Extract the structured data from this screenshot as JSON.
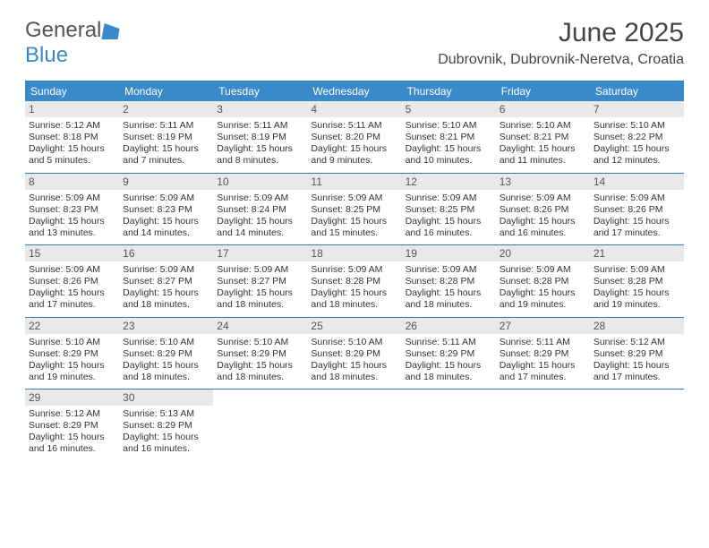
{
  "logo": {
    "text1": "General",
    "text2": "Blue"
  },
  "title": "June 2025",
  "location": "Dubrovnik, Dubrovnik-Neretva, Croatia",
  "header_bg": "#3a8ac9",
  "border_color": "#2b7bb9",
  "daynum_bg": "#e9e9e9",
  "days_of_week": [
    "Sunday",
    "Monday",
    "Tuesday",
    "Wednesday",
    "Thursday",
    "Friday",
    "Saturday"
  ],
  "weeks": [
    [
      {
        "n": "1",
        "sr": "Sunrise: 5:12 AM",
        "ss": "Sunset: 8:18 PM",
        "dl": "Daylight: 15 hours and 5 minutes."
      },
      {
        "n": "2",
        "sr": "Sunrise: 5:11 AM",
        "ss": "Sunset: 8:19 PM",
        "dl": "Daylight: 15 hours and 7 minutes."
      },
      {
        "n": "3",
        "sr": "Sunrise: 5:11 AM",
        "ss": "Sunset: 8:19 PM",
        "dl": "Daylight: 15 hours and 8 minutes."
      },
      {
        "n": "4",
        "sr": "Sunrise: 5:11 AM",
        "ss": "Sunset: 8:20 PM",
        "dl": "Daylight: 15 hours and 9 minutes."
      },
      {
        "n": "5",
        "sr": "Sunrise: 5:10 AM",
        "ss": "Sunset: 8:21 PM",
        "dl": "Daylight: 15 hours and 10 minutes."
      },
      {
        "n": "6",
        "sr": "Sunrise: 5:10 AM",
        "ss": "Sunset: 8:21 PM",
        "dl": "Daylight: 15 hours and 11 minutes."
      },
      {
        "n": "7",
        "sr": "Sunrise: 5:10 AM",
        "ss": "Sunset: 8:22 PM",
        "dl": "Daylight: 15 hours and 12 minutes."
      }
    ],
    [
      {
        "n": "8",
        "sr": "Sunrise: 5:09 AM",
        "ss": "Sunset: 8:23 PM",
        "dl": "Daylight: 15 hours and 13 minutes."
      },
      {
        "n": "9",
        "sr": "Sunrise: 5:09 AM",
        "ss": "Sunset: 8:23 PM",
        "dl": "Daylight: 15 hours and 14 minutes."
      },
      {
        "n": "10",
        "sr": "Sunrise: 5:09 AM",
        "ss": "Sunset: 8:24 PM",
        "dl": "Daylight: 15 hours and 14 minutes."
      },
      {
        "n": "11",
        "sr": "Sunrise: 5:09 AM",
        "ss": "Sunset: 8:25 PM",
        "dl": "Daylight: 15 hours and 15 minutes."
      },
      {
        "n": "12",
        "sr": "Sunrise: 5:09 AM",
        "ss": "Sunset: 8:25 PM",
        "dl": "Daylight: 15 hours and 16 minutes."
      },
      {
        "n": "13",
        "sr": "Sunrise: 5:09 AM",
        "ss": "Sunset: 8:26 PM",
        "dl": "Daylight: 15 hours and 16 minutes."
      },
      {
        "n": "14",
        "sr": "Sunrise: 5:09 AM",
        "ss": "Sunset: 8:26 PM",
        "dl": "Daylight: 15 hours and 17 minutes."
      }
    ],
    [
      {
        "n": "15",
        "sr": "Sunrise: 5:09 AM",
        "ss": "Sunset: 8:26 PM",
        "dl": "Daylight: 15 hours and 17 minutes."
      },
      {
        "n": "16",
        "sr": "Sunrise: 5:09 AM",
        "ss": "Sunset: 8:27 PM",
        "dl": "Daylight: 15 hours and 18 minutes."
      },
      {
        "n": "17",
        "sr": "Sunrise: 5:09 AM",
        "ss": "Sunset: 8:27 PM",
        "dl": "Daylight: 15 hours and 18 minutes."
      },
      {
        "n": "18",
        "sr": "Sunrise: 5:09 AM",
        "ss": "Sunset: 8:28 PM",
        "dl": "Daylight: 15 hours and 18 minutes."
      },
      {
        "n": "19",
        "sr": "Sunrise: 5:09 AM",
        "ss": "Sunset: 8:28 PM",
        "dl": "Daylight: 15 hours and 18 minutes."
      },
      {
        "n": "20",
        "sr": "Sunrise: 5:09 AM",
        "ss": "Sunset: 8:28 PM",
        "dl": "Daylight: 15 hours and 19 minutes."
      },
      {
        "n": "21",
        "sr": "Sunrise: 5:09 AM",
        "ss": "Sunset: 8:28 PM",
        "dl": "Daylight: 15 hours and 19 minutes."
      }
    ],
    [
      {
        "n": "22",
        "sr": "Sunrise: 5:10 AM",
        "ss": "Sunset: 8:29 PM",
        "dl": "Daylight: 15 hours and 19 minutes."
      },
      {
        "n": "23",
        "sr": "Sunrise: 5:10 AM",
        "ss": "Sunset: 8:29 PM",
        "dl": "Daylight: 15 hours and 18 minutes."
      },
      {
        "n": "24",
        "sr": "Sunrise: 5:10 AM",
        "ss": "Sunset: 8:29 PM",
        "dl": "Daylight: 15 hours and 18 minutes."
      },
      {
        "n": "25",
        "sr": "Sunrise: 5:10 AM",
        "ss": "Sunset: 8:29 PM",
        "dl": "Daylight: 15 hours and 18 minutes."
      },
      {
        "n": "26",
        "sr": "Sunrise: 5:11 AM",
        "ss": "Sunset: 8:29 PM",
        "dl": "Daylight: 15 hours and 18 minutes."
      },
      {
        "n": "27",
        "sr": "Sunrise: 5:11 AM",
        "ss": "Sunset: 8:29 PM",
        "dl": "Daylight: 15 hours and 17 minutes."
      },
      {
        "n": "28",
        "sr": "Sunrise: 5:12 AM",
        "ss": "Sunset: 8:29 PM",
        "dl": "Daylight: 15 hours and 17 minutes."
      }
    ],
    [
      {
        "n": "29",
        "sr": "Sunrise: 5:12 AM",
        "ss": "Sunset: 8:29 PM",
        "dl": "Daylight: 15 hours and 16 minutes."
      },
      {
        "n": "30",
        "sr": "Sunrise: 5:13 AM",
        "ss": "Sunset: 8:29 PM",
        "dl": "Daylight: 15 hours and 16 minutes."
      },
      null,
      null,
      null,
      null,
      null
    ]
  ]
}
